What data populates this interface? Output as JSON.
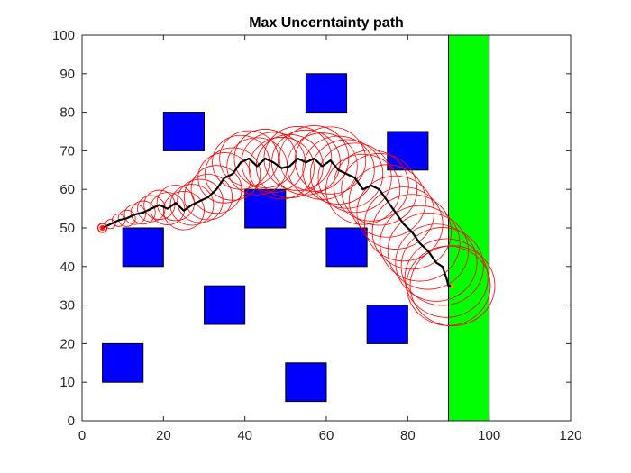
{
  "chart_data": {
    "type": "scatter",
    "title": "Max Uncerntainty path",
    "xlabel": "",
    "ylabel": "",
    "xlim": [
      0,
      120
    ],
    "ylim": [
      0,
      100
    ],
    "xticks": [
      0,
      20,
      40,
      60,
      80,
      100,
      120
    ],
    "yticks": [
      0,
      10,
      20,
      30,
      40,
      50,
      60,
      70,
      80,
      90,
      100
    ],
    "grid": false,
    "colors": {
      "obstacle": "#0000ff",
      "goal": "#00ff00",
      "path": "#000000",
      "uncertainty": "#ff0000",
      "start": "#ff0000"
    },
    "goal_region": {
      "x0": 90,
      "x1": 100,
      "y0": 0,
      "y1": 100
    },
    "obstacles": [
      {
        "x0": 20,
        "x1": 30,
        "y0": 70,
        "y1": 80
      },
      {
        "x0": 55,
        "x1": 65,
        "y0": 80,
        "y1": 90
      },
      {
        "x0": 75,
        "x1": 85,
        "y0": 65,
        "y1": 75
      },
      {
        "x0": 40,
        "x1": 50,
        "y0": 50,
        "y1": 60
      },
      {
        "x0": 10,
        "x1": 20,
        "y0": 40,
        "y1": 50
      },
      {
        "x0": 60,
        "x1": 70,
        "y0": 40,
        "y1": 50
      },
      {
        "x0": 30,
        "x1": 40,
        "y0": 25,
        "y1": 35
      },
      {
        "x0": 70,
        "x1": 80,
        "y0": 20,
        "y1": 30
      },
      {
        "x0": 5,
        "x1": 15,
        "y0": 10,
        "y1": 20
      },
      {
        "x0": 50,
        "x1": 60,
        "y0": 5,
        "y1": 15
      }
    ],
    "path": {
      "x": [
        5,
        7,
        9,
        11,
        13,
        15,
        17,
        19,
        21,
        23,
        25,
        27,
        29,
        31,
        33,
        35,
        37,
        39,
        41,
        43,
        45,
        47,
        49,
        51,
        53,
        55,
        57,
        59,
        61,
        63,
        65,
        67,
        69,
        71,
        73,
        75,
        77,
        79,
        81,
        83,
        85,
        87,
        88.5,
        89.5,
        90,
        91
      ],
      "y": [
        50,
        51,
        52,
        52.5,
        53.5,
        54,
        55,
        56,
        55,
        56.5,
        54.5,
        56,
        57,
        58,
        60,
        63,
        64,
        67,
        68,
        66,
        68,
        67,
        65.5,
        66,
        68,
        67,
        68,
        66,
        67.5,
        65,
        64,
        63,
        60,
        61,
        60,
        57,
        54,
        51,
        49,
        46,
        44,
        41,
        40,
        37,
        35,
        35
      ]
    },
    "uncertainty_radius": [
      0.6,
      1.2,
      1.6,
      2.1,
      2.6,
      3.0,
      3.4,
      3.8,
      4.2,
      4.6,
      5.0,
      5.3,
      5.6,
      5.9,
      6.2,
      6.5,
      6.8,
      7.0,
      7.2,
      7.4,
      7.6,
      7.8,
      8.0,
      8.2,
      8.3,
      8.4,
      8.5,
      8.6,
      8.7,
      8.8,
      8.9,
      9.0,
      9.1,
      9.2,
      9.3,
      9.4,
      9.5,
      9.6,
      9.7,
      9.8,
      9.9,
      10.0,
      10.1,
      10.2,
      10.3,
      10.4
    ],
    "start": {
      "x": 5,
      "y": 50
    },
    "end": {
      "x": 91,
      "y": 35
    }
  }
}
